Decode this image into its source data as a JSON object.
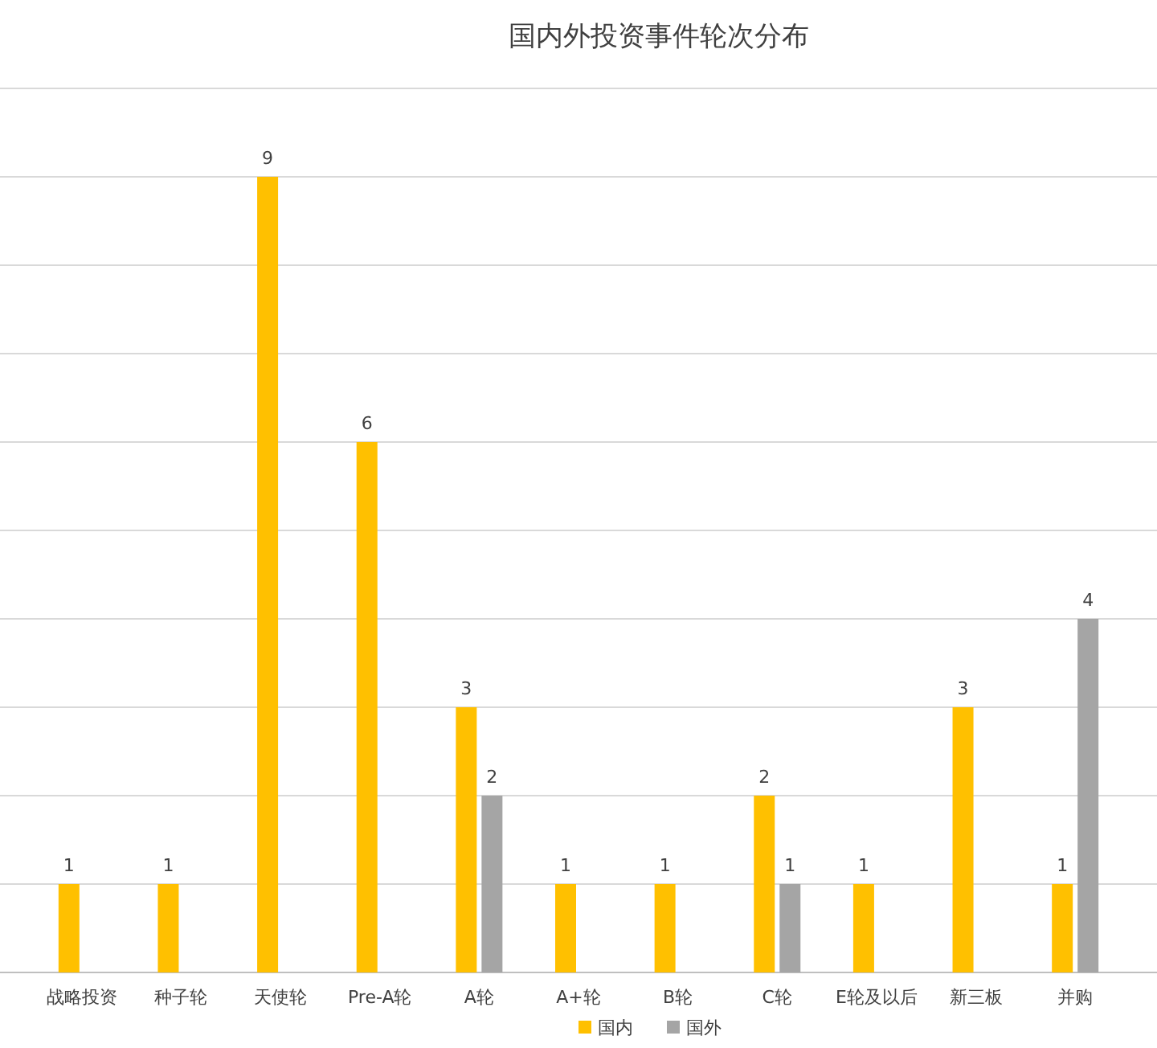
{
  "chart_data": {
    "type": "bar",
    "title": "国内外投资事件轮次分布",
    "categories": [
      "战略投资",
      "种子轮",
      "天使轮",
      "Pre-A轮",
      "A轮",
      "A+轮",
      "B轮",
      "C轮",
      "E轮及以后",
      "新三板",
      "并购"
    ],
    "series": [
      {
        "name": "国内",
        "color": "#ffc000",
        "values": [
          1,
          1,
          9,
          6,
          3,
          1,
          1,
          2,
          1,
          3,
          1
        ]
      },
      {
        "name": "国外",
        "color": "#a5a5a5",
        "values": [
          null,
          null,
          null,
          null,
          2,
          null,
          null,
          1,
          null,
          null,
          4
        ]
      }
    ],
    "ylim": [
      0,
      10
    ],
    "yticks": [
      {
        "value": 0,
        "label": null
      },
      {
        "value": 1,
        "label": null
      },
      {
        "value": 2,
        "label": null
      },
      {
        "value": 3,
        "label": null
      },
      {
        "value": 4,
        "label": null
      },
      {
        "value": 5,
        "label": null
      },
      {
        "value": 6,
        "label": null
      },
      {
        "value": 7,
        "label": null
      },
      {
        "value": 8,
        "label": null
      },
      {
        "value": 9,
        "label": null
      },
      {
        "value": 10,
        "label": null
      }
    ],
    "grid": "y",
    "legend": "bottom",
    "data_labels": true
  }
}
